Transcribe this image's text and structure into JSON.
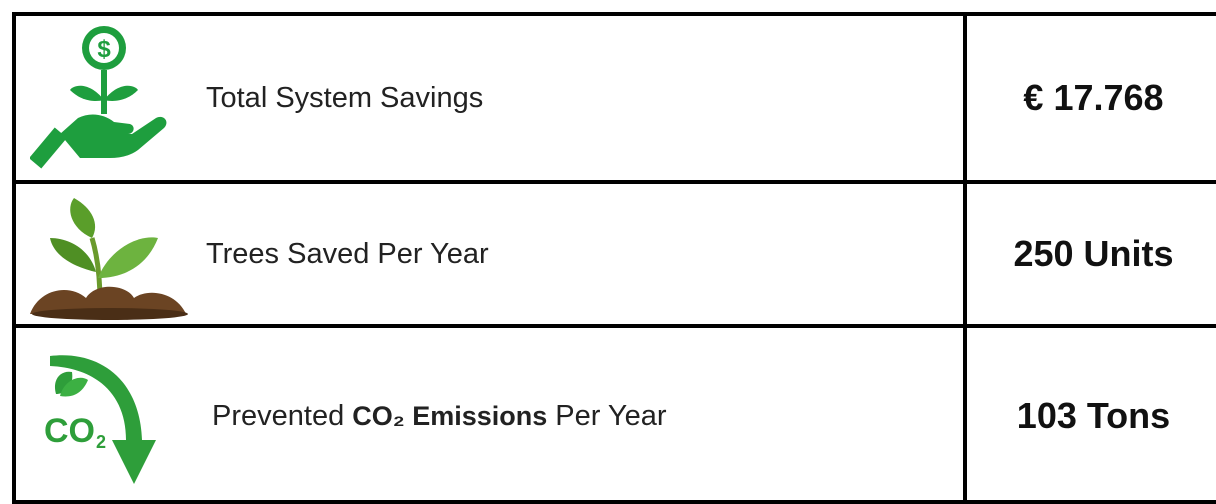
{
  "table": {
    "rows": [
      {
        "label": [
          "Total System Savings"
        ],
        "value": "€ 17.768"
      },
      {
        "label": [
          "Trees Saved Per Year"
        ],
        "value": "250 Units"
      },
      {
        "label": [
          "Prevented",
          "CO₂ Emissions",
          "Per Year"
        ],
        "value": "103 Tons"
      }
    ]
  }
}
